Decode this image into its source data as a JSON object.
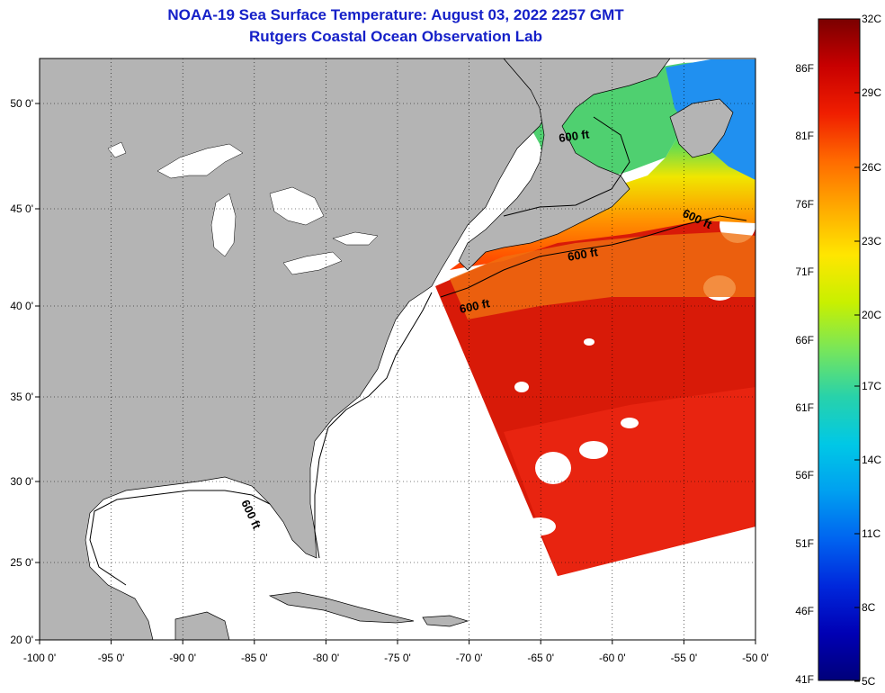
{
  "title": "NOAA-19 Sea Surface Temperature:  August 03, 2022 2257 GMT",
  "subtitle": "Rutgers Coastal Ocean Observation Lab",
  "map": {
    "x_ticks": [
      "-100 0'",
      "-95 0'",
      "-90 0'",
      "-85 0'",
      "-80 0'",
      "-75 0'",
      "-70 0'",
      "-65 0'",
      "-60 0'",
      "-55 0'",
      "-50 0'"
    ],
    "y_ticks": [
      "50 0'",
      "45 0'",
      "40 0'",
      "35 0'",
      "30 0'",
      "25 0'",
      "20 0'"
    ],
    "contour_label": "600 ft",
    "land_color": "#b4b4b4",
    "water_color": "#ffffff"
  },
  "colorbar": {
    "fahrenheit": [
      "86F",
      "81F",
      "76F",
      "71F",
      "66F",
      "61F",
      "56F",
      "51F",
      "46F",
      "41F"
    ],
    "celsius": [
      "32C",
      "29C",
      "26C",
      "23C",
      "20C",
      "17C",
      "14C",
      "11C",
      "8C",
      "5C"
    ],
    "colors": [
      "#7a0000",
      "#c80000",
      "#f01e00",
      "#ff6a00",
      "#ffaa00",
      "#ffe600",
      "#c8f000",
      "#78e65a",
      "#28d2aa",
      "#00c8e6",
      "#00a0f0",
      "#0064f0",
      "#0028dc",
      "#0000b4",
      "#00007a"
    ]
  }
}
